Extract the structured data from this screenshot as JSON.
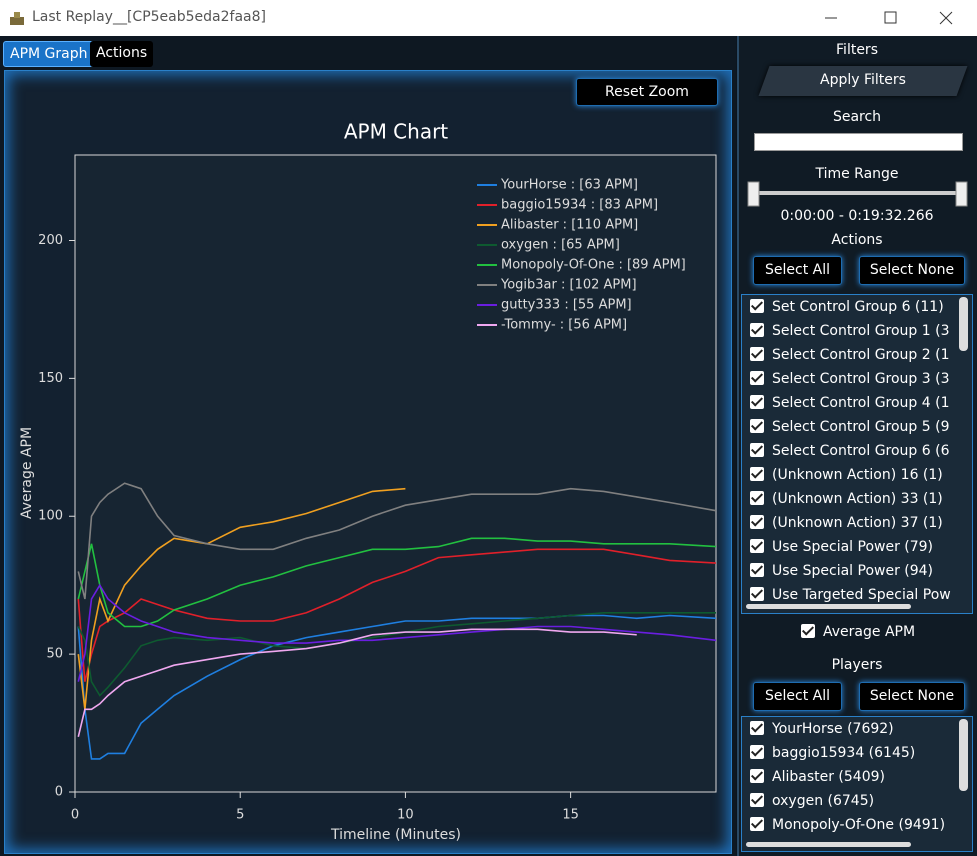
{
  "window": {
    "title": "Last Replay__[CP5eab5eda2faa8]"
  },
  "tabs": [
    "APM Graph",
    "Actions"
  ],
  "reset_zoom": "Reset Zoom",
  "filters": {
    "title": "Filters",
    "apply": "Apply Filters",
    "search": "Search",
    "time_range": "Time Range",
    "time_value": "0:00:00 - 0:19:32.266",
    "actions_title": "Actions",
    "select_all": "Select All",
    "select_none": "Select None",
    "actions": [
      "Set Control Group 6  (11)",
      "Select Control Group 1  (3",
      "Select Control Group 2  (1",
      "Select Control Group 3  (3",
      "Select Control Group 4  (1",
      "Select Control Group 5  (9",
      "Select Control Group 6  (6",
      "(Unknown Action) 16  (1)",
      "(Unknown Action) 33  (1)",
      "(Unknown Action) 37  (1)",
      "Use Special Power  (79)",
      "Use Special Power  (94)",
      "Use Targeted Special Pow"
    ],
    "average_apm": "Average APM",
    "players_title": "Players",
    "players_select_all": "Select All",
    "players_select_none": "Select None",
    "players": [
      "YourHorse  (7692)",
      "baggio15934  (6145)",
      "Alibaster  (5409)",
      "oxygen  (6745)",
      "Monopoly-Of-One  (9491)"
    ]
  },
  "chart_data": {
    "type": "line",
    "title": "APM Chart",
    "xlabel": "Timeline (Minutes)",
    "ylabel": "Average APM",
    "x": [
      0.1,
      0.3,
      0.5,
      0.75,
      1,
      1.5,
      2,
      2.5,
      3,
      4,
      5,
      6,
      7,
      8,
      9,
      10,
      11,
      12,
      13,
      14,
      15,
      16,
      17,
      18,
      19.4
    ],
    "xlim": [
      0,
      19.4
    ],
    "ylim": [
      0,
      231
    ],
    "xticks": [
      0,
      5,
      10,
      15
    ],
    "yticks": [
      0,
      50,
      100,
      150,
      200
    ],
    "series": [
      {
        "name": "YourHorse : [63 APM]",
        "color": "#1f7fe0",
        "values": [
          60,
          30,
          12,
          12,
          14,
          14,
          25,
          30,
          35,
          42,
          48,
          53,
          56,
          58,
          60,
          62,
          62,
          63,
          63,
          63,
          64,
          64,
          63,
          64,
          63
        ]
      },
      {
        "name": "baggio15934 : [83 APM]",
        "color": "#e0202a",
        "values": [
          70,
          40,
          50,
          60,
          62,
          65,
          70,
          68,
          66,
          63,
          62,
          62,
          65,
          70,
          76,
          80,
          85,
          86,
          87,
          88,
          88,
          88,
          86,
          84,
          83
        ]
      },
      {
        "name": "Alibaster : [110 APM]",
        "color": "#f0a020",
        "values": [
          50,
          30,
          55,
          70,
          62,
          75,
          82,
          88,
          92,
          90,
          96,
          98,
          101,
          105,
          109,
          110,
          null,
          null,
          null,
          null,
          null,
          null,
          null,
          null,
          null
        ]
      },
      {
        "name": "oxygen : [65 APM]",
        "color": "#0e5a30",
        "values": [
          60,
          55,
          40,
          35,
          38,
          45,
          53,
          55,
          56,
          55,
          56,
          53,
          52,
          54,
          56,
          58,
          60,
          61,
          62,
          63,
          64,
          65,
          65,
          65,
          65
        ]
      },
      {
        "name": "Monopoly-Of-One : [89 APM]",
        "color": "#22c040",
        "values": [
          70,
          80,
          90,
          75,
          65,
          60,
          60,
          62,
          66,
          70,
          75,
          78,
          82,
          85,
          88,
          88,
          89,
          92,
          92,
          91,
          91,
          90,
          90,
          90,
          89
        ]
      },
      {
        "name": "Yogib3ar : [102 APM]",
        "color": "#808080",
        "values": [
          80,
          70,
          100,
          105,
          108,
          112,
          110,
          100,
          93,
          90,
          88,
          88,
          92,
          95,
          100,
          104,
          106,
          108,
          108,
          108,
          110,
          109,
          107,
          105,
          102
        ]
      },
      {
        "name": "gutty333 : [55 APM]",
        "color": "#6a1ee0",
        "values": [
          40,
          50,
          70,
          75,
          70,
          65,
          62,
          60,
          58,
          56,
          55,
          54,
          54,
          55,
          55,
          56,
          57,
          58,
          59,
          60,
          60,
          59,
          58,
          57,
          55
        ]
      },
      {
        "name": "-Tommy- : [56 APM]",
        "color": "#f0a8f0",
        "values": [
          20,
          30,
          30,
          32,
          35,
          40,
          42,
          44,
          46,
          48,
          50,
          51,
          52,
          54,
          57,
          58,
          58,
          59,
          59,
          59,
          58,
          58,
          57,
          null,
          null
        ]
      }
    ]
  }
}
